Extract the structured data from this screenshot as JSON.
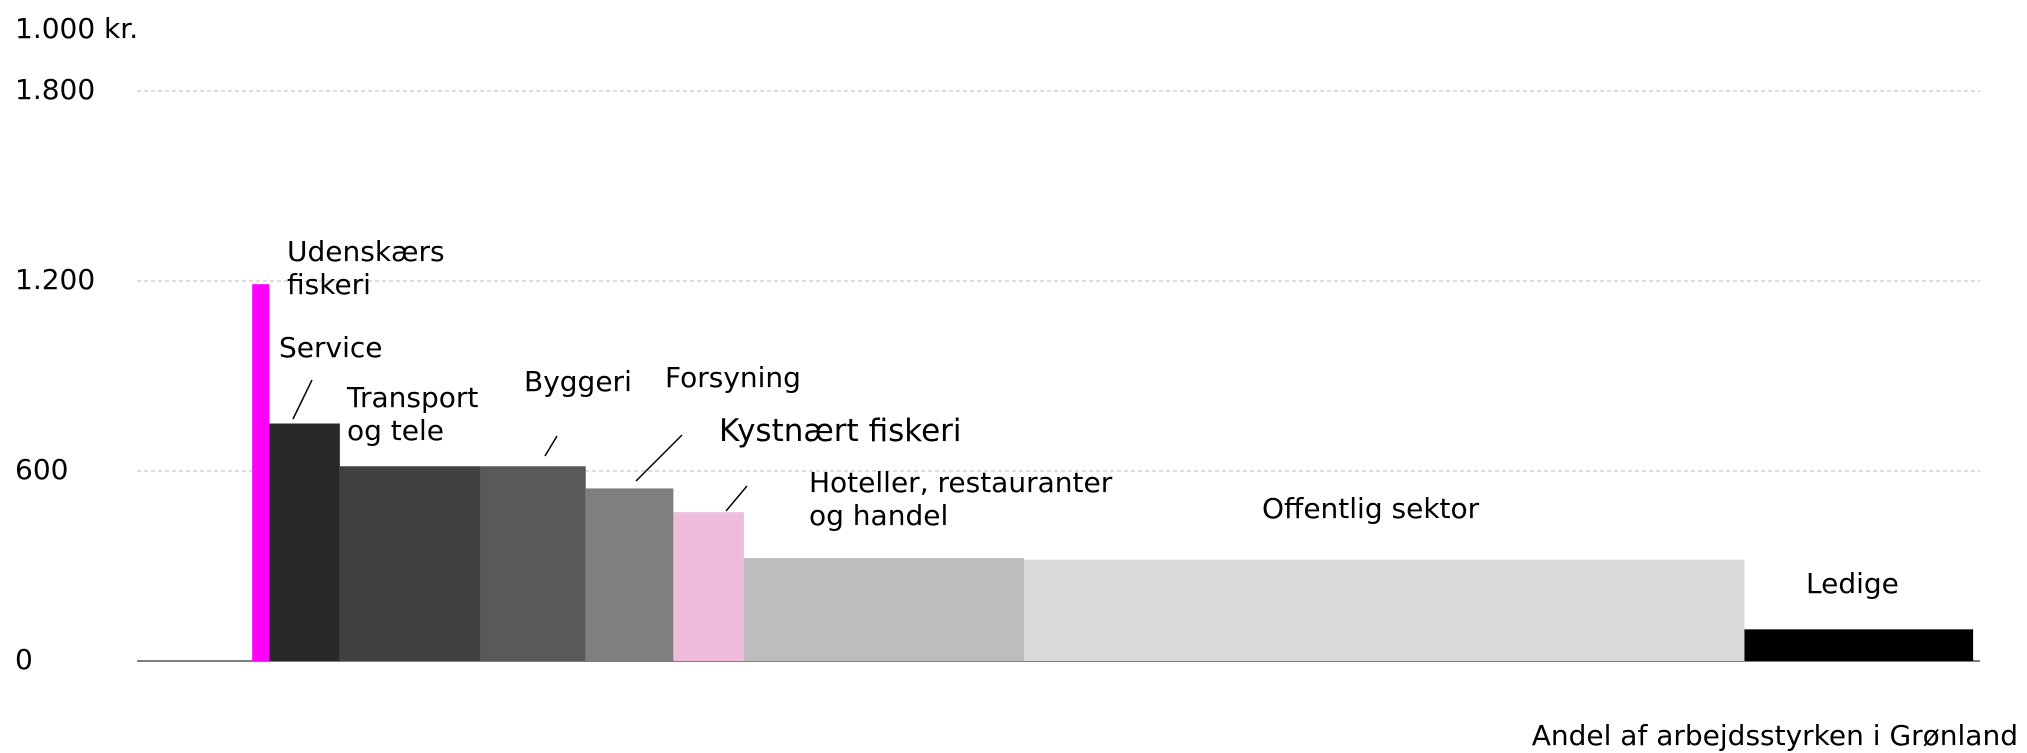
{
  "chart_data": {
    "type": "variable-width-bar",
    "y_label": "1.000 kr.",
    "x_label": "Andel af arbejdsstyrken i Grønland",
    "categories": [
      "Udenskærs\nfiskeri",
      "Service",
      "Transport\nog tele",
      "Byggeri",
      "Forsyning",
      "Kystnært fiskeri",
      "Hoteller, restauranter\nog handel",
      "Offentlig sektor",
      "Ledige"
    ],
    "values": [
      1190,
      750,
      615,
      615,
      545,
      470,
      325,
      320,
      100
    ],
    "widths": [
      1.0,
      4.1,
      8.2,
      6.1,
      5.1,
      4.1,
      16.3,
      41.9,
      13.3
    ],
    "colors": [
      "#ff00ff",
      "#282828",
      "#404040",
      "#595959",
      "#7f7f7f",
      "#efbcdc",
      "#bdbdbd",
      "#d9d9d9",
      "#000000"
    ],
    "xlim": [
      -6.7,
      100.5
    ],
    "ylim": [
      0,
      1800
    ],
    "yticks": [
      0,
      600,
      {
        "value": 1200,
        "label": "1.200"
      },
      {
        "value": 1800,
        "label": "1.800"
      }
    ],
    "grid": true
  }
}
